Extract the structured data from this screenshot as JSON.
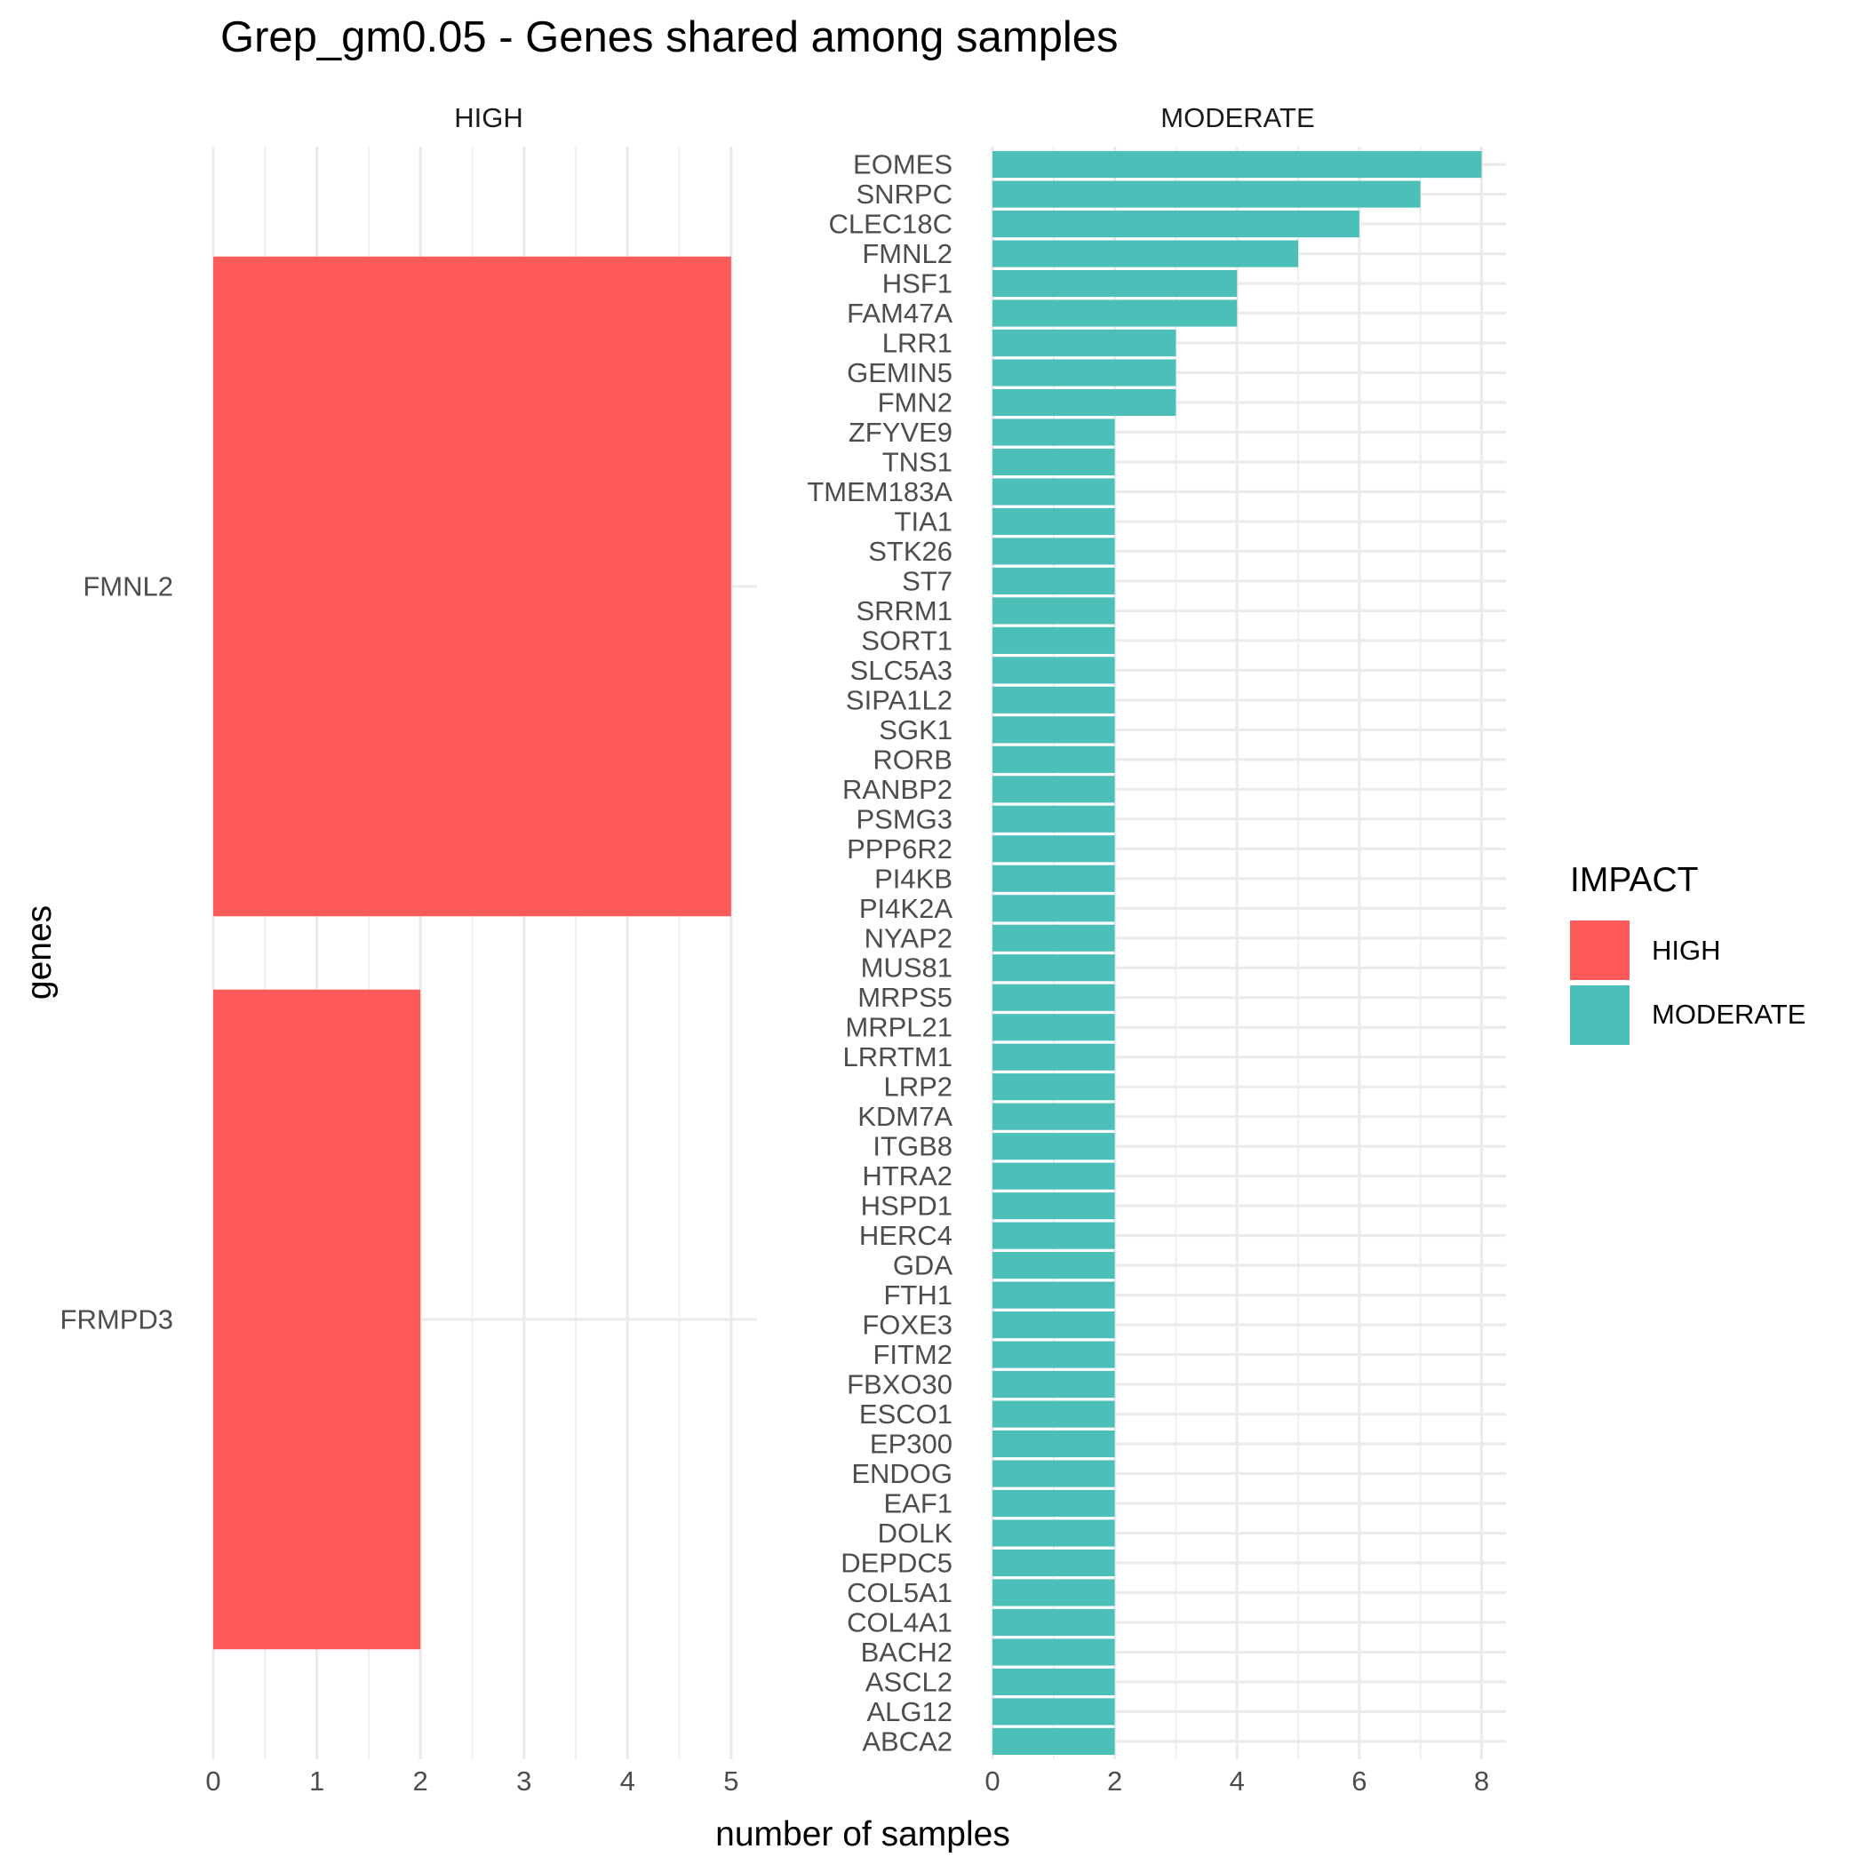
{
  "chart_data": {
    "type": "bar",
    "orientation": "horizontal",
    "title": "Grep_gm0.05 - Genes shared among samples",
    "xlabel": "number of samples",
    "ylabel": "genes",
    "grid": true,
    "legend": {
      "title": "IMPACT",
      "position": "right",
      "entries": [
        {
          "label": "HIGH",
          "color": "#F8766D"
        },
        {
          "label": "MODERATE",
          "color": "#00BFC4"
        }
      ]
    },
    "panels": [
      {
        "name": "HIGH",
        "color": "#FF5A5A",
        "xlim": [
          0,
          5.25
        ],
        "xticks": [
          0,
          1,
          2,
          3,
          4,
          5
        ],
        "categories": [
          "FMNL2",
          "FRMPD3"
        ],
        "values": [
          5,
          2
        ]
      },
      {
        "name": "MODERATE",
        "color": "#4BBFB8",
        "xlim": [
          0,
          8.4
        ],
        "xticks": [
          0,
          2,
          4,
          6,
          8
        ],
        "categories": [
          "EOMES",
          "SNRPC",
          "CLEC18C",
          "FMNL2",
          "HSF1",
          "FAM47A",
          "LRR1",
          "GEMIN5",
          "FMN2",
          "ZFYVE9",
          "TNS1",
          "TMEM183A",
          "TIA1",
          "STK26",
          "ST7",
          "SRRM1",
          "SORT1",
          "SLC5A3",
          "SIPA1L2",
          "SGK1",
          "RORB",
          "RANBP2",
          "PSMG3",
          "PPP6R2",
          "PI4KB",
          "PI4K2A",
          "NYAP2",
          "MUS81",
          "MRPS5",
          "MRPL21",
          "LRRTM1",
          "LRP2",
          "KDM7A",
          "ITGB8",
          "HTRA2",
          "HSPD1",
          "HERC4",
          "GDA",
          "FTH1",
          "FOXE3",
          "FITM2",
          "FBXO30",
          "ESCO1",
          "EP300",
          "ENDOG",
          "EAF1",
          "DOLK",
          "DEPDC5",
          "COL5A1",
          "COL4A1",
          "BACH2",
          "ASCL2",
          "ALG12",
          "ABCA2"
        ],
        "values": [
          8,
          7,
          6,
          5,
          4,
          4,
          3,
          3,
          3,
          2,
          2,
          2,
          2,
          2,
          2,
          2,
          2,
          2,
          2,
          2,
          2,
          2,
          2,
          2,
          2,
          2,
          2,
          2,
          2,
          2,
          2,
          2,
          2,
          2,
          2,
          2,
          2,
          2,
          2,
          2,
          2,
          2,
          2,
          2,
          2,
          2,
          2,
          2,
          2,
          2,
          2,
          2,
          2,
          2
        ]
      }
    ]
  }
}
